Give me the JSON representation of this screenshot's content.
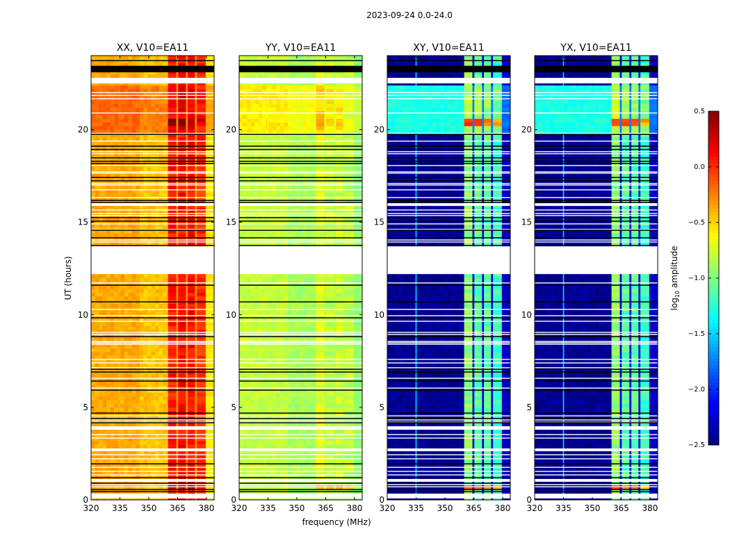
{
  "chart_data": {
    "type": "heatmap",
    "title": "2023-09-24 0.0-24.0",
    "xlabel": "frequency (MHz)",
    "ylabel": "UT (hours)",
    "xlim": [
      320,
      384
    ],
    "ylim": [
      0,
      24
    ],
    "xticks": [
      320,
      335,
      350,
      365,
      380
    ],
    "yticks": [
      0,
      5,
      10,
      15,
      20
    ],
    "colorbar": {
      "label": "log",
      "label_sub": "10",
      "label_rest": " amplitude",
      "range": [
        -2.5,
        0.5
      ],
      "ticks": [
        "0.5",
        "0.0",
        "−0.5",
        "−1.0",
        "−1.5",
        "−2.0",
        "−2.5"
      ],
      "tick_values": [
        0.5,
        0.0,
        -0.5,
        -1.0,
        -1.5,
        -2.0,
        -2.5
      ],
      "colormap": "jet"
    },
    "band_edges_mhz": {
      "start": 360,
      "gaps": [
        364.8,
        369.8,
        374.5
      ],
      "end": 379.6
    },
    "active_window_hours": [
      19.8,
      22.5
    ],
    "hot_rows_hours": [
      [
        20.2,
        20.7
      ],
      [
        0.6,
        0.83
      ]
    ],
    "white_gaps_hours": [
      [
        12.2,
        13.7
      ],
      [
        22.5,
        22.8
      ],
      [
        15.88,
        16.03
      ],
      [
        3.79,
        3.98
      ],
      [
        2.63,
        2.78
      ],
      [
        0.98,
        1.13
      ],
      [
        0.08,
        0.34
      ]
    ],
    "white_rows_hours": [
      22.0,
      21.85,
      21.67,
      20.9,
      19.8,
      19.38,
      18.81,
      18.7,
      18.06,
      17.72,
      17.65,
      17.09,
      17.01,
      16.75,
      16.33,
      15.66,
      15.47,
      15.36,
      14.91,
      14.61,
      14.04,
      13.93,
      11.72,
      10.29,
      9.95,
      9.65,
      9.05,
      8.94,
      8.56,
      8.49,
      8.41,
      7.59,
      7.4,
      7.14,
      6.57,
      6.04,
      4.54,
      4.32,
      4.2,
      3.53,
      3.34,
      2.44,
      2.22,
      1.76,
      1.54,
      1.35,
      0.83,
      0.71
    ],
    "black_block_hours": [
      23.1,
      23.45
    ],
    "black_rows_hours": [
      23.73,
      19.75,
      19.11,
      18.93,
      18.48,
      18.29,
      18.17,
      17.42,
      17.24,
      16.18,
      16.07,
      15.25,
      15.06,
      14.57,
      14.16,
      13.74,
      11.6,
      10.7,
      9.84,
      8.82,
      7.06,
      6.91,
      6.42,
      5.93,
      4.69,
      4.39,
      4.17,
      1.95,
      1.2,
      0.9,
      0.56,
      0.45
    ],
    "panels": [
      {
        "title": "XX, V10=EA11",
        "low": -0.42,
        "low_active": -0.22,
        "line_335": -0.42,
        "band": [
          0.05,
          0.1,
          0.1,
          0.0
        ],
        "band_hot": [
          0.45,
          0.42,
          0.4,
          0.2
        ],
        "band_active": [
          0.15,
          0.2,
          0.2,
          0.05
        ],
        "gap": -0.3,
        "edge": -0.55
      },
      {
        "title": "YY, V10=EA11",
        "low": -0.85,
        "low_active": -0.62,
        "line_335": -0.85,
        "band": [
          -0.72,
          -0.8,
          -0.78,
          -0.82
        ],
        "band_hot": [
          -0.3,
          -0.4,
          -0.4,
          -0.55
        ],
        "band_active": [
          -0.5,
          -0.6,
          -0.6,
          -0.7
        ],
        "gap": -0.85,
        "edge": -0.95
      },
      {
        "title": "XY, V10=EA11",
        "low": -2.45,
        "low_active": -1.3,
        "line_335": -1.5,
        "band": [
          -0.95,
          -1.1,
          -1.1,
          -1.2
        ],
        "band_hot": [
          -0.05,
          -0.1,
          -0.2,
          -0.4
        ],
        "band_active": [
          -0.8,
          -0.9,
          -0.95,
          -1.05
        ],
        "gap": -2.2,
        "edge": -2.3
      },
      {
        "title": "YX, V10=EA11",
        "low": -2.45,
        "low_active": -1.3,
        "line_335": -1.5,
        "band": [
          -0.95,
          -1.1,
          -1.1,
          -1.2
        ],
        "band_hot": [
          -0.05,
          -0.1,
          -0.2,
          -0.4
        ],
        "band_active": [
          -0.8,
          -0.9,
          -0.95,
          -1.05
        ],
        "gap": -2.2,
        "edge": -2.3
      }
    ]
  }
}
